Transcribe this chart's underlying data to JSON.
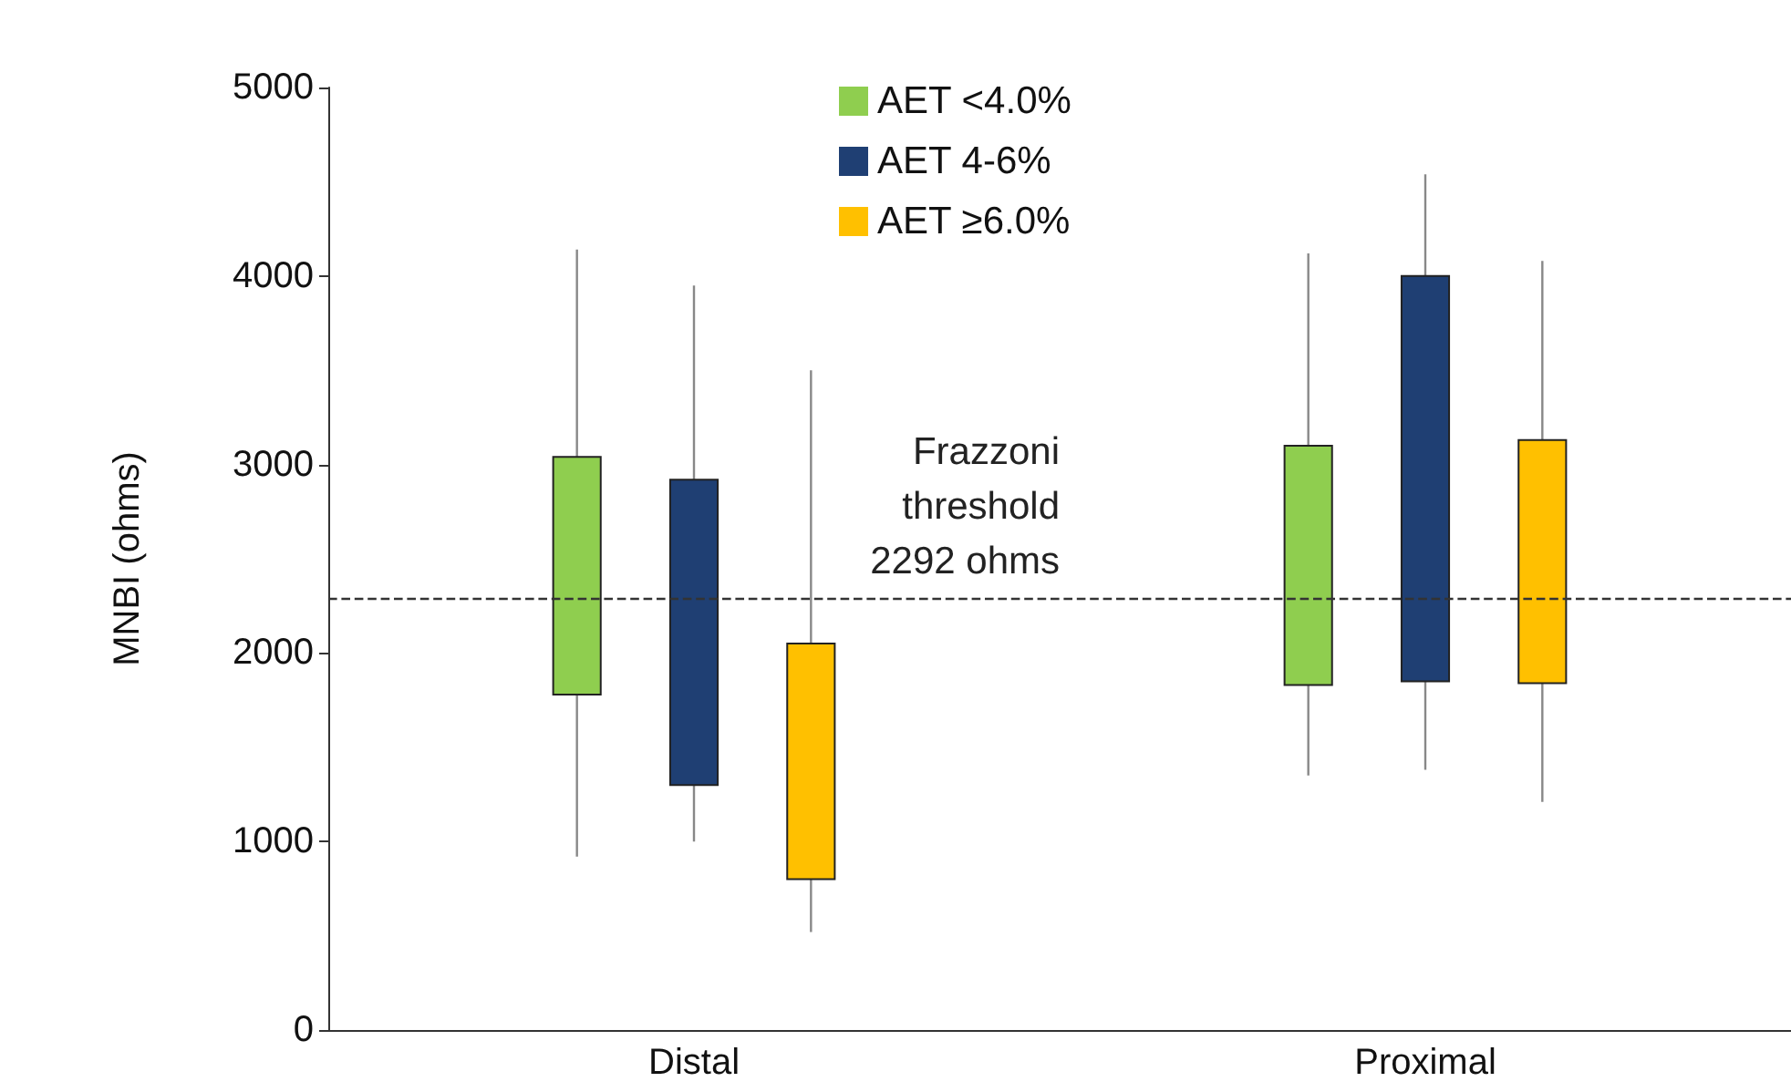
{
  "chart_data": {
    "type": "bar",
    "ylabel": "MNBI (ohms)",
    "categories": [
      "Distal",
      "Proximal"
    ],
    "series": [
      {
        "name": "AET <4.0%",
        "color": "#8fce4f",
        "base": [
          1780,
          1830
        ],
        "values": [
          1260,
          1270
        ],
        "errors": [
          [
            920,
            4140
          ],
          [
            1350,
            4120
          ]
        ]
      },
      {
        "name": "AET 4-6%",
        "color": "#1f3f73",
        "base": [
          1300,
          1850
        ],
        "values": [
          1620,
          2150
        ],
        "errors": [
          [
            1000,
            3950
          ],
          [
            1380,
            4540
          ]
        ]
      },
      {
        "name": "AET ≥6.0%",
        "color": "#ffc000",
        "base": [
          800,
          1840
        ],
        "values": [
          1250,
          1290
        ],
        "errors": [
          [
            520,
            3500
          ],
          [
            1210,
            4080
          ]
        ]
      }
    ],
    "ylim": [
      0,
      5000
    ],
    "yticks": [
      0,
      1000,
      2000,
      3000,
      4000,
      5000
    ],
    "ref_lines": [
      {
        "axis": "y",
        "value": 2292,
        "label": "Frazzoni\nthreshold\n2292 ohms",
        "line_style": "dashed"
      }
    ],
    "legend": "top",
    "grid": false
  }
}
